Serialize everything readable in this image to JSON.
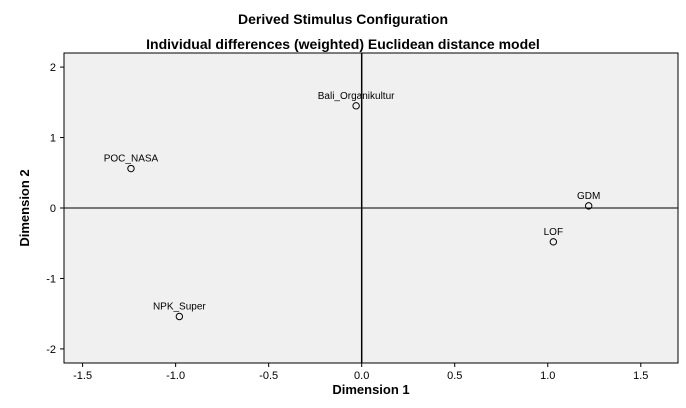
{
  "chart_data": {
    "type": "scatter",
    "title": "Derived Stimulus Configuration",
    "subtitle": "Individual differences (weighted) Euclidean distance model",
    "xlabel": "Dimension 1",
    "ylabel": "Dimension 2",
    "xlim": [
      -1.6,
      1.7
    ],
    "ylim": [
      -2.2,
      2.2
    ],
    "xticks": [
      -1.5,
      -1.0,
      -0.5,
      0.0,
      0.5,
      1.0,
      1.5
    ],
    "xtick_labels": [
      "-1.5",
      "-1.0",
      "-0.5",
      "0.0",
      "0.5",
      "1.0",
      "1.5"
    ],
    "yticks": [
      -2,
      -1,
      0,
      1,
      2
    ],
    "ytick_labels": [
      "-2",
      "-1",
      "0",
      "1",
      "2"
    ],
    "grid": false,
    "reference_lines": {
      "x": 0,
      "y": 0
    },
    "colors": {
      "plot_background": "#f0f0f0",
      "marker": "#000000",
      "axis": "#000000"
    },
    "points": [
      {
        "label": "Bali_Organikultur",
        "x": -0.03,
        "y": 1.45
      },
      {
        "label": "POC_NASA",
        "x": -1.24,
        "y": 0.56
      },
      {
        "label": "GDM",
        "x": 1.22,
        "y": 0.03
      },
      {
        "label": "LOF",
        "x": 1.03,
        "y": -0.48
      },
      {
        "label": "NPK_Super",
        "x": -0.98,
        "y": -1.54
      }
    ]
  }
}
